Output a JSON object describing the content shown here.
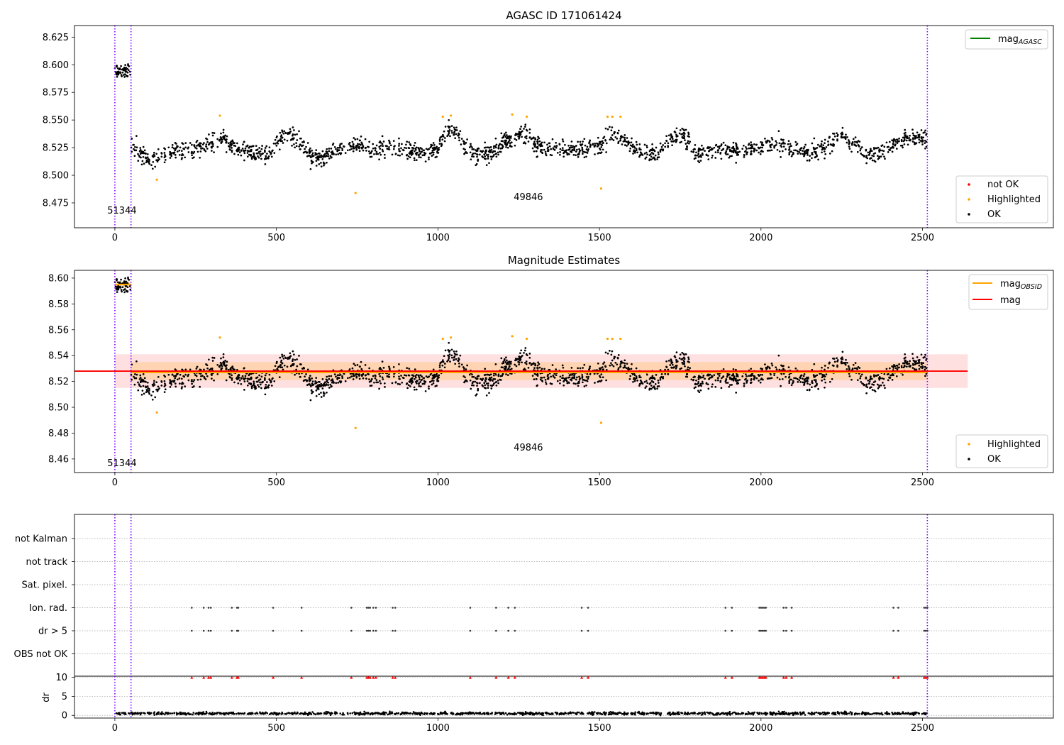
{
  "chart_data": [
    {
      "type": "scatter",
      "title": "AGASC ID 171061424",
      "xlim": [
        -125,
        2905
      ],
      "ylim": [
        8.4525,
        8.6355
      ],
      "xticks": [
        0,
        500,
        1000,
        1500,
        2000,
        2500
      ],
      "yticks": [
        8.475,
        8.5,
        8.525,
        8.55,
        8.575,
        8.6,
        8.625
      ],
      "ytick_labels": [
        "8.475",
        "8.500",
        "8.525",
        "8.550",
        "8.575",
        "8.600",
        "8.625"
      ],
      "legend_top": [
        {
          "label": "mag",
          "sub": "AGASC",
          "color": "#008000",
          "kind": "line"
        }
      ],
      "legend_bottom": [
        {
          "label": "not OK",
          "color": "#ff0000",
          "kind": "dot"
        },
        {
          "label": "Highlighted",
          "color": "#ffa500",
          "kind": "dot"
        },
        {
          "label": "OK",
          "color": "#000000",
          "kind": "dot"
        }
      ],
      "annotations": [
        {
          "text": "51344",
          "x": 22,
          "y": 8.4655
        },
        {
          "text": "49846",
          "x": 1280,
          "y": 8.4775
        }
      ],
      "vlines_x": [
        0,
        50,
        2515
      ],
      "highlighted_points": [
        [
          130,
          8.496
        ],
        [
          325,
          8.554
        ],
        [
          745,
          8.484
        ],
        [
          1015,
          8.553
        ],
        [
          1040,
          8.554
        ],
        [
          1230,
          8.555
        ],
        [
          1275,
          8.553
        ],
        [
          1505,
          8.488
        ],
        [
          1525,
          8.553
        ],
        [
          1540,
          8.553
        ],
        [
          1565,
          8.553
        ]
      ]
    },
    {
      "type": "scatter",
      "title": "Magnitude Estimates",
      "xlim": [
        -125,
        2905
      ],
      "ylim": [
        8.4495,
        8.606
      ],
      "xticks": [
        0,
        500,
        1000,
        1500,
        2000,
        2500
      ],
      "yticks": [
        8.46,
        8.48,
        8.5,
        8.52,
        8.54,
        8.56,
        8.58,
        8.6
      ],
      "ytick_labels": [
        "8.46",
        "8.48",
        "8.50",
        "8.52",
        "8.54",
        "8.56",
        "8.58",
        "8.60"
      ],
      "legend_top": [
        {
          "label": "mag",
          "sub": "OBSID",
          "color": "#ffa500",
          "kind": "line"
        },
        {
          "label": "mag",
          "sub": "",
          "color": "#ff0000",
          "kind": "line"
        }
      ],
      "legend_bottom": [
        {
          "label": "Highlighted",
          "color": "#ffa500",
          "kind": "dot"
        },
        {
          "label": "OK",
          "color": "#000000",
          "kind": "dot"
        }
      ],
      "annotations": [
        {
          "text": "51344",
          "x": 22,
          "y": 8.4545
        },
        {
          "text": "49846",
          "x": 1280,
          "y": 8.4665
        }
      ],
      "vlines_x": [
        0,
        50,
        2515
      ],
      "mag_line": 8.528,
      "band_outer": [
        8.515,
        8.541
      ],
      "band_inner": [
        8.521,
        8.535
      ],
      "band_x": [
        0,
        2640
      ],
      "obsid_segments": [
        [
          0,
          50,
          8.595
        ],
        [
          50,
          2515,
          8.527
        ]
      ],
      "highlighted_points": [
        [
          130,
          8.496
        ],
        [
          325,
          8.554
        ],
        [
          745,
          8.484
        ],
        [
          1015,
          8.553
        ],
        [
          1040,
          8.554
        ],
        [
          1230,
          8.555
        ],
        [
          1275,
          8.553
        ],
        [
          1505,
          8.488
        ],
        [
          1525,
          8.553
        ],
        [
          1540,
          8.553
        ],
        [
          1565,
          8.553
        ]
      ]
    },
    {
      "type": "scatter",
      "xlim": [
        -125,
        2905
      ],
      "xticks": [
        0,
        500,
        1000,
        1500,
        2000,
        2500
      ],
      "flag_rows": [
        "not Kalman",
        "not track",
        "Sat. pixel.",
        "Ion. rad.",
        "dr > 5",
        "OBS not OK"
      ],
      "flag_x": [
        238,
        275,
        290,
        297,
        362,
        378,
        382,
        490,
        578,
        732,
        780,
        785,
        790,
        800,
        808,
        860,
        868,
        1100,
        1180,
        1218,
        1238,
        1445,
        1465,
        1890,
        1910,
        1995,
        2000,
        2005,
        2010,
        2015,
        2070,
        2078,
        2095,
        2410,
        2425,
        2505,
        2510,
        2515
      ],
      "flag_rows_marked": [
        "Ion. rad.",
        "dr > 5"
      ],
      "dr_ylabel": "dr",
      "dr_yticks": [
        0,
        5,
        10
      ],
      "dr_ylim": [
        -0.7,
        10.3
      ],
      "dr_level": 0.5,
      "dr_capped_value": 10,
      "vlines_x": [
        0,
        50,
        2515
      ]
    }
  ]
}
